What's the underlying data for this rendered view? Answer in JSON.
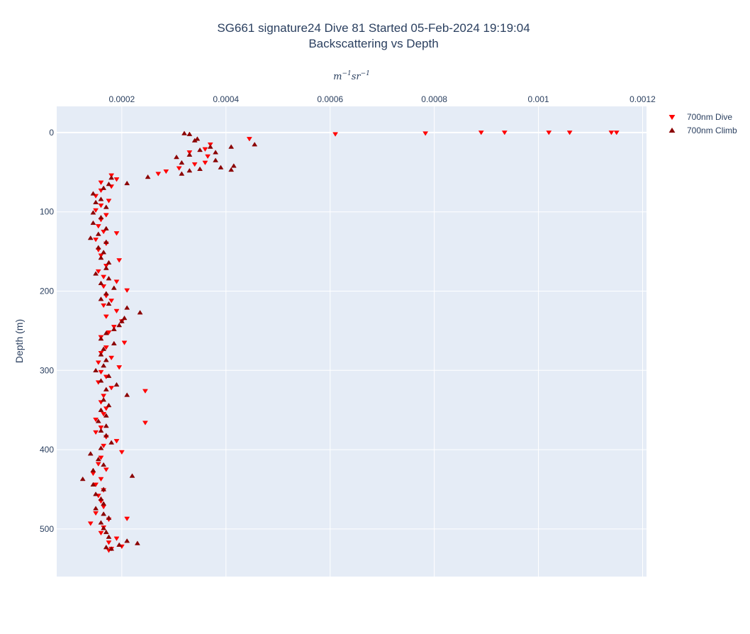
{
  "chart_data": {
    "type": "scatter",
    "title_line1": "SG661 signature24 Dive 81 Started 05-Feb-2024 19:19:04",
    "title_line2": "Backscattering vs Depth",
    "x_unit_base1": "m",
    "x_unit_exp1": "−1",
    "x_unit_base2": "sr",
    "x_unit_exp2": "−1",
    "ylabel": "Depth (m)",
    "x_axis_position": "top",
    "y_reversed": true,
    "xlim": [
      7.5e-05,
      0.0012075
    ],
    "ylim": [
      -33,
      560
    ],
    "x_ticks": [
      0.0002,
      0.0004,
      0.0006,
      0.0008,
      0.001,
      0.0012
    ],
    "x_tick_labels": [
      "0.0002",
      "0.0004",
      "0.0006",
      "0.0008",
      "0.001",
      "0.0012"
    ],
    "y_ticks": [
      0,
      100,
      200,
      300,
      400,
      500
    ],
    "y_tick_labels": [
      "0",
      "100",
      "200",
      "300",
      "400",
      "500"
    ],
    "grid": true,
    "legend_position": "top-right",
    "plot_background": "#e5ecf6",
    "series": [
      {
        "name": "700nm Dive",
        "marker": "triangle-down",
        "color": "#ff0000",
        "points": [
          [
            0.00114,
            0
          ],
          [
            0.00115,
            0
          ],
          [
            0.00106,
            0
          ],
          [
            0.00102,
            0
          ],
          [
            0.000935,
            0
          ],
          [
            0.00089,
            0
          ],
          [
            0.000783,
            1
          ],
          [
            0.00061,
            2
          ],
          [
            0.000445,
            8
          ],
          [
            0.00037,
            15
          ],
          [
            0.00036,
            21
          ],
          [
            0.00033,
            25
          ],
          [
            0.000365,
            30
          ],
          [
            0.00036,
            38
          ],
          [
            0.00034,
            40
          ],
          [
            0.00031,
            45
          ],
          [
            0.000285,
            49
          ],
          [
            0.00027,
            52
          ],
          [
            0.00018,
            54
          ],
          [
            0.00019,
            59
          ],
          [
            0.00016,
            63
          ],
          [
            0.00018,
            68
          ],
          [
            0.00016,
            73
          ],
          [
            0.00015,
            80
          ],
          [
            0.000175,
            86
          ],
          [
            0.00016,
            92
          ],
          [
            0.00015,
            98
          ],
          [
            0.00017,
            104
          ],
          [
            0.00016,
            110
          ],
          [
            0.000155,
            118
          ],
          [
            0.000165,
            125
          ],
          [
            0.00019,
            127
          ],
          [
            0.00015,
            135
          ],
          [
            0.00017,
            140
          ],
          [
            0.000155,
            148
          ],
          [
            0.00016,
            155
          ],
          [
            0.000195,
            161
          ],
          [
            0.00017,
            168
          ],
          [
            0.000155,
            175
          ],
          [
            0.000165,
            182
          ],
          [
            0.00019,
            188
          ],
          [
            0.000165,
            194
          ],
          [
            0.00021,
            199
          ],
          [
            0.00017,
            206
          ],
          [
            0.00018,
            212
          ],
          [
            0.000165,
            218
          ],
          [
            0.00019,
            225
          ],
          [
            0.00017,
            232
          ],
          [
            0.0002,
            238
          ],
          [
            0.000185,
            245
          ],
          [
            0.000175,
            252
          ],
          [
            0.00016,
            258
          ],
          [
            0.000205,
            265
          ],
          [
            0.00017,
            271
          ],
          [
            0.00016,
            278
          ],
          [
            0.00018,
            284
          ],
          [
            0.000155,
            290
          ],
          [
            0.000195,
            296
          ],
          [
            0.00016,
            302
          ],
          [
            0.00017,
            308
          ],
          [
            0.000155,
            315
          ],
          [
            0.00018,
            322
          ],
          [
            0.000245,
            326
          ],
          [
            0.000165,
            332
          ],
          [
            0.00016,
            340
          ],
          [
            0.00017,
            348
          ],
          [
            0.000165,
            355
          ],
          [
            0.00015,
            362
          ],
          [
            0.000245,
            366
          ],
          [
            0.00016,
            372
          ],
          [
            0.00015,
            378
          ],
          [
            0.00017,
            384
          ],
          [
            0.00019,
            389
          ],
          [
            0.000165,
            395
          ],
          [
            0.0002,
            403
          ],
          [
            0.00016,
            410
          ],
          [
            0.000155,
            418
          ],
          [
            0.00017,
            425
          ],
          [
            0.000145,
            430
          ],
          [
            0.00016,
            437
          ],
          [
            0.00015,
            444
          ],
          [
            0.000165,
            451
          ],
          [
            0.000155,
            458
          ],
          [
            0.00016,
            465
          ],
          [
            0.000165,
            472
          ],
          [
            0.00015,
            480
          ],
          [
            0.00021,
            487
          ],
          [
            0.000175,
            488
          ],
          [
            0.00014,
            493
          ],
          [
            0.000165,
            498
          ],
          [
            0.00016,
            505
          ],
          [
            0.00019,
            512
          ],
          [
            0.000175,
            517
          ],
          [
            0.0002,
            522
          ],
          [
            0.00018,
            525
          ],
          [
            0.000175,
            527
          ]
        ]
      },
      {
        "name": "700nm Climb",
        "marker": "triangle-up",
        "color": "#8b0000",
        "points": [
          [
            0.000455,
            15
          ],
          [
            0.00041,
            18
          ],
          [
            0.00033,
            2
          ],
          [
            0.00034,
            10
          ],
          [
            0.00037,
            18
          ],
          [
            0.00035,
            22
          ],
          [
            0.00038,
            25
          ],
          [
            0.00033,
            28
          ],
          [
            0.000305,
            31
          ],
          [
            0.00038,
            35
          ],
          [
            0.000315,
            38
          ],
          [
            0.000415,
            42
          ],
          [
            0.00039,
            44
          ],
          [
            0.00035,
            46
          ],
          [
            0.00033,
            48
          ],
          [
            0.000315,
            52
          ],
          [
            0.00025,
            56
          ],
          [
            0.00041,
            47
          ],
          [
            0.00032,
            1
          ],
          [
            0.000345,
            8
          ],
          [
            0.00018,
            57
          ],
          [
            0.00021,
            64
          ],
          [
            0.000175,
            65
          ],
          [
            0.000165,
            70
          ],
          [
            0.000145,
            77
          ],
          [
            0.00016,
            84
          ],
          [
            0.00015,
            88
          ],
          [
            0.00017,
            94
          ],
          [
            0.000145,
            101
          ],
          [
            0.00016,
            107
          ],
          [
            0.000145,
            114
          ],
          [
            0.00017,
            121
          ],
          [
            0.000155,
            128
          ],
          [
            0.00014,
            133
          ],
          [
            0.00017,
            138
          ],
          [
            0.000155,
            145
          ],
          [
            0.000165,
            151
          ],
          [
            0.00016,
            158
          ],
          [
            0.000175,
            164
          ],
          [
            0.00017,
            171
          ],
          [
            0.00015,
            178
          ],
          [
            0.000175,
            184
          ],
          [
            0.00016,
            190
          ],
          [
            0.000185,
            196
          ],
          [
            0.00017,
            203
          ],
          [
            0.00016,
            210
          ],
          [
            0.000175,
            216
          ],
          [
            0.00021,
            221
          ],
          [
            0.000235,
            227
          ],
          [
            0.000205,
            234
          ],
          [
            0.0002,
            238
          ],
          [
            0.000195,
            243
          ],
          [
            0.000185,
            248
          ],
          [
            0.00017,
            253
          ],
          [
            0.00016,
            260
          ],
          [
            0.000185,
            266
          ],
          [
            0.000165,
            273
          ],
          [
            0.00016,
            280
          ],
          [
            0.00017,
            287
          ],
          [
            0.000165,
            294
          ],
          [
            0.00015,
            300
          ],
          [
            0.000175,
            307
          ],
          [
            0.00016,
            313
          ],
          [
            0.00019,
            318
          ],
          [
            0.00017,
            324
          ],
          [
            0.00021,
            331
          ],
          [
            0.000165,
            337
          ],
          [
            0.000175,
            344
          ],
          [
            0.00016,
            350
          ],
          [
            0.00017,
            357
          ],
          [
            0.000155,
            364
          ],
          [
            0.00017,
            370
          ],
          [
            0.00016,
            376
          ],
          [
            0.00017,
            382
          ],
          [
            0.00018,
            391
          ],
          [
            0.00016,
            398
          ],
          [
            0.00014,
            405
          ],
          [
            0.000155,
            412
          ],
          [
            0.000165,
            419
          ],
          [
            0.000145,
            426
          ],
          [
            0.00022,
            433
          ],
          [
            0.000125,
            437
          ],
          [
            0.000145,
            444
          ],
          [
            0.000165,
            450
          ],
          [
            0.00015,
            456
          ],
          [
            0.00016,
            462
          ],
          [
            0.000165,
            468
          ],
          [
            0.00015,
            474
          ],
          [
            0.000165,
            481
          ],
          [
            0.000175,
            486
          ],
          [
            0.00016,
            492
          ],
          [
            0.000165,
            499
          ],
          [
            0.00017,
            504
          ],
          [
            0.000175,
            510
          ],
          [
            0.00021,
            515
          ],
          [
            0.00023,
            518
          ],
          [
            0.000195,
            520
          ],
          [
            0.00017,
            523
          ],
          [
            0.00018,
            525
          ]
        ]
      }
    ]
  }
}
